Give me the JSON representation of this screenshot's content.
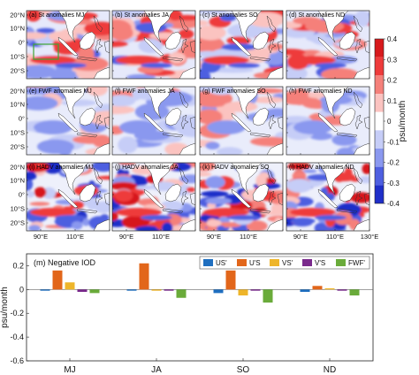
{
  "map_panels": {
    "titles": [
      "(a)  St anomalies  MJ",
      "(b)  St anomalies  JA",
      "(c)  St anomalies  SO",
      "(d)  St anomalies  ND",
      "(e)  FWF anomalies  MJ",
      "(f)  FWF anomalies  JA",
      "(g)  FWF anomalies  SO",
      "(h)  FWF anomalies  ND",
      "(i)  HADV anomalies  MJ",
      "(j)  HADV anomalies  JA",
      "(k)  HADV anomalies  SO",
      "(l)  HADV anomalies  ND"
    ],
    "lat_ticks": [
      "20°N",
      "10°N",
      "0°",
      "10°S",
      "20°S"
    ],
    "lon_ticks": [
      "90°E",
      "110°E",
      "130°E"
    ]
  },
  "colorbar": {
    "label": "psu/month",
    "ticks": [
      "0.4",
      "0.3",
      "0.2",
      "0.1",
      "0",
      "-0.1",
      "-0.2",
      "-0.3",
      "-0.4"
    ],
    "colors": [
      "#d7191c",
      "#ee3b3b",
      "#f5807a",
      "#fbc3c0",
      "#ffffff",
      "#c6cdf7",
      "#8a98ef",
      "#4e5fe0",
      "#1f2fc9"
    ]
  },
  "chart_data": {
    "type": "bar",
    "title": "(m) Negative IOD",
    "ylabel": "psu/month",
    "ylim": [
      -0.6,
      0.3
    ],
    "yticks": [
      "0.2",
      "0",
      "-0.2",
      "-0.4",
      "-0.6"
    ],
    "categories": [
      "MJ",
      "JA",
      "SO",
      "ND"
    ],
    "series": [
      {
        "name": "US'",
        "color": "#1f6fc0",
        "values": [
          -0.01,
          -0.01,
          -0.03,
          -0.02
        ]
      },
      {
        "name": "U'S",
        "color": "#e2661a",
        "values": [
          0.16,
          0.22,
          0.16,
          0.03
        ]
      },
      {
        "name": "VS'",
        "color": "#eeb52a",
        "values": [
          0.06,
          -0.01,
          -0.05,
          0.01
        ]
      },
      {
        "name": "V'S",
        "color": "#7a2a8c",
        "values": [
          -0.02,
          -0.01,
          -0.01,
          -0.01
        ]
      },
      {
        "name": "FWF'",
        "color": "#6aab3a",
        "values": [
          -0.03,
          -0.07,
          -0.11,
          -0.05
        ]
      }
    ]
  }
}
